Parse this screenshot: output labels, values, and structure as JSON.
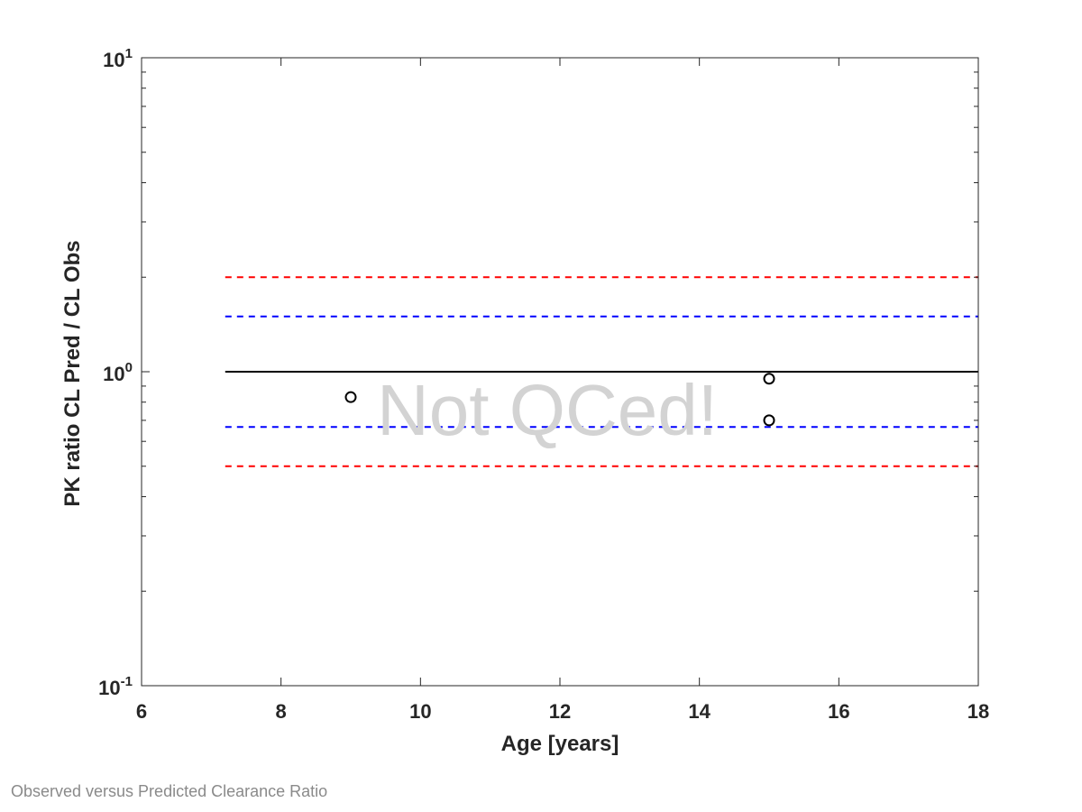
{
  "caption": "Observed versus Predicted Clearance Ratio",
  "watermark": "Not QCed!",
  "chart_data": {
    "type": "scatter",
    "title": "",
    "xlabel": "Age [years]",
    "ylabel": "PK ratio CL Pred / CL Obs",
    "xlim": [
      6,
      18
    ],
    "ylim": [
      0.1,
      10
    ],
    "yscale": "log",
    "xticks": [
      6,
      8,
      10,
      12,
      14,
      16,
      18
    ],
    "yticks": [
      {
        "value": 0.1,
        "base": "10",
        "exp": "-1"
      },
      {
        "value": 1,
        "base": "10",
        "exp": "0"
      },
      {
        "value": 10,
        "base": "10",
        "exp": "1"
      }
    ],
    "grid": false,
    "legend": "none",
    "points": [
      {
        "x": 9,
        "y": 0.83
      },
      {
        "x": 15,
        "y": 0.95
      },
      {
        "x": 15,
        "y": 0.7
      }
    ],
    "reference_lines": [
      {
        "y": 2.0,
        "x_range": [
          7.2,
          18
        ],
        "style": "dashed",
        "color": "#ff0000"
      },
      {
        "y": 1.5,
        "x_range": [
          7.2,
          18
        ],
        "style": "dashed",
        "color": "#0000ff"
      },
      {
        "y": 1.0,
        "x_range": [
          7.2,
          18
        ],
        "style": "solid",
        "color": "#000000"
      },
      {
        "y": 0.6667,
        "x_range": [
          7.2,
          18
        ],
        "style": "dashed",
        "color": "#0000ff"
      },
      {
        "y": 0.5,
        "x_range": [
          7.2,
          18
        ],
        "style": "dashed",
        "color": "#ff0000"
      }
    ]
  }
}
